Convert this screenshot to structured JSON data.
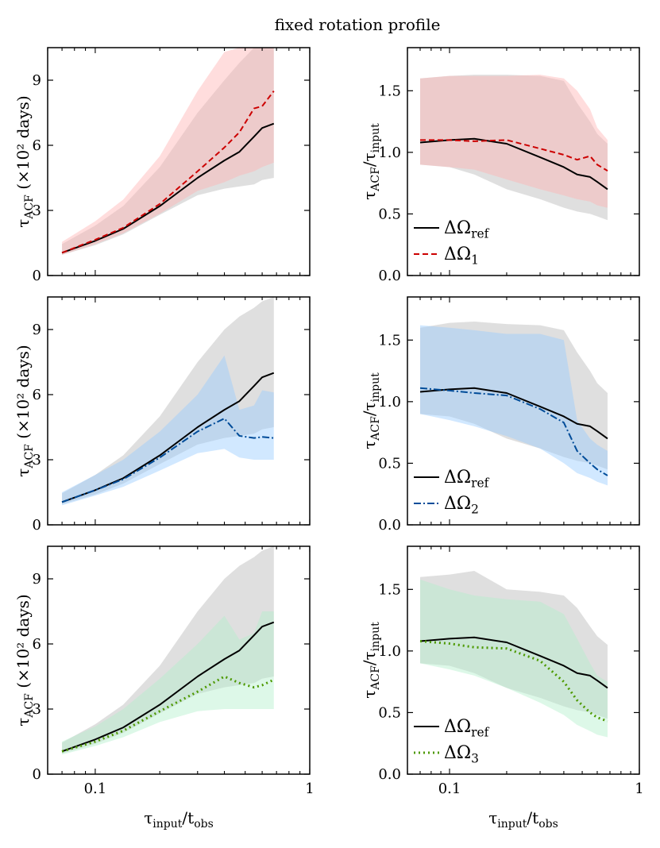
{
  "title": "fixed rotation profile",
  "shared_x_label": "τ_input/t_obs",
  "left_y_label": "τ_ACF (×10² days)",
  "right_y_label": "τ_ACF/τ_input",
  "chart_data": [
    {
      "type": "line",
      "name": "row1-left",
      "xscale": "log",
      "xlim": [
        0.06,
        1.0
      ],
      "ylim": [
        0,
        10.5
      ],
      "yticks": [
        0,
        3,
        6,
        9
      ],
      "xticks": [
        0.1,
        1
      ],
      "ylabel": "τ_ACF (×10² days)",
      "xlabel": "",
      "x": [
        0.07,
        0.1,
        0.135,
        0.2,
        0.3,
        0.4,
        0.47,
        0.55,
        0.6,
        0.68
      ],
      "series": [
        {
          "name": "ΔΩ_ref",
          "color": "#000000",
          "dash": "",
          "width": 2,
          "values": [
            1.05,
            1.6,
            2.15,
            3.2,
            4.5,
            5.3,
            5.7,
            6.4,
            6.8,
            7.0
          ],
          "band_lower": [
            0.95,
            1.4,
            1.9,
            2.8,
            3.7,
            4.0,
            4.1,
            4.2,
            4.4,
            4.5
          ],
          "band_upper": [
            1.45,
            2.3,
            3.2,
            5.0,
            7.5,
            9.0,
            9.8,
            10.5,
            10.5,
            10.5
          ],
          "band_color": "#b8b8b8"
        },
        {
          "name": "ΔΩ_1",
          "color": "#cc0000",
          "dash": "7,4",
          "width": 2,
          "values": [
            1.05,
            1.65,
            2.2,
            3.3,
            4.8,
            5.9,
            6.6,
            7.7,
            7.8,
            8.5
          ],
          "band_lower": [
            0.95,
            1.45,
            1.95,
            2.85,
            3.9,
            4.3,
            4.6,
            4.8,
            5.0,
            5.2
          ],
          "band_upper": [
            1.55,
            2.5,
            3.5,
            5.5,
            8.5,
            10.3,
            10.5,
            10.5,
            10.5,
            10.5
          ],
          "band_color": "#ffb3b3"
        }
      ],
      "legend": null
    },
    {
      "type": "line",
      "name": "row1-right",
      "xscale": "log",
      "xlim": [
        0.06,
        1.0
      ],
      "ylim": [
        0,
        1.85
      ],
      "yticks": [
        0.0,
        0.5,
        1.0,
        1.5
      ],
      "xticks": [
        0.1,
        1
      ],
      "ylabel": "τ_ACF/τ_input",
      "xlabel": "",
      "x": [
        0.07,
        0.1,
        0.135,
        0.2,
        0.3,
        0.4,
        0.47,
        0.55,
        0.6,
        0.68
      ],
      "series": [
        {
          "name": "ΔΩ_ref",
          "color": "#000000",
          "dash": "",
          "width": 2,
          "values": [
            1.08,
            1.1,
            1.11,
            1.07,
            0.96,
            0.88,
            0.82,
            0.8,
            0.76,
            0.7
          ],
          "band_lower": [
            0.9,
            0.88,
            0.82,
            0.7,
            0.62,
            0.55,
            0.52,
            0.5,
            0.48,
            0.45
          ],
          "band_upper": [
            1.6,
            1.62,
            1.63,
            1.63,
            1.62,
            1.58,
            1.4,
            1.25,
            1.15,
            1.07
          ],
          "band_color": "#b8b8b8"
        },
        {
          "name": "ΔΩ_1",
          "color": "#cc0000",
          "dash": "7,4",
          "width": 2,
          "values": [
            1.1,
            1.1,
            1.09,
            1.1,
            1.03,
            0.98,
            0.94,
            0.97,
            0.9,
            0.85
          ],
          "band_lower": [
            0.9,
            0.88,
            0.86,
            0.78,
            0.7,
            0.65,
            0.62,
            0.6,
            0.57,
            0.55
          ],
          "band_upper": [
            1.6,
            1.62,
            1.62,
            1.62,
            1.63,
            1.6,
            1.5,
            1.35,
            1.2,
            1.1
          ],
          "band_color": "#ffb3b3"
        }
      ],
      "legend": {
        "placement": "lower-left",
        "entries": [
          "ΔΩ_ref",
          "ΔΩ_1"
        ]
      }
    },
    {
      "type": "line",
      "name": "row2-left",
      "xscale": "log",
      "xlim": [
        0.06,
        1.0
      ],
      "ylim": [
        0,
        10.5
      ],
      "yticks": [
        0,
        3,
        6,
        9
      ],
      "xticks": [
        0.1,
        1
      ],
      "ylabel": "τ_ACF (×10² days)",
      "xlabel": "",
      "x": [
        0.07,
        0.1,
        0.135,
        0.2,
        0.3,
        0.4,
        0.47,
        0.55,
        0.6,
        0.68
      ],
      "series": [
        {
          "name": "ΔΩ_ref",
          "color": "#000000",
          "dash": "",
          "width": 2,
          "values": [
            1.05,
            1.6,
            2.15,
            3.2,
            4.5,
            5.3,
            5.7,
            6.4,
            6.8,
            7.0
          ],
          "band_lower": [
            0.95,
            1.4,
            1.9,
            2.8,
            3.7,
            4.0,
            4.1,
            4.2,
            4.4,
            4.5
          ],
          "band_upper": [
            1.45,
            2.3,
            3.2,
            5.0,
            7.5,
            9.0,
            9.6,
            10.0,
            10.3,
            10.5
          ],
          "band_color": "#b8b8b8"
        },
        {
          "name": "ΔΩ_2",
          "color": "#004c99",
          "dash": "9,3,2,3",
          "width": 2,
          "values": [
            1.05,
            1.6,
            2.1,
            3.1,
            4.3,
            4.9,
            4.1,
            4.0,
            4.05,
            4.0
          ],
          "band_lower": [
            0.9,
            1.35,
            1.75,
            2.5,
            3.3,
            3.5,
            3.1,
            3.0,
            3.0,
            3.0
          ],
          "band_upper": [
            1.5,
            2.3,
            3.0,
            4.3,
            6.0,
            7.8,
            5.3,
            5.5,
            6.2,
            6.1
          ],
          "band_color": "#99ccff"
        }
      ],
      "legend": null
    },
    {
      "type": "line",
      "name": "row2-right",
      "xscale": "log",
      "xlim": [
        0.06,
        1.0
      ],
      "ylim": [
        0,
        1.85
      ],
      "yticks": [
        0.0,
        0.5,
        1.0,
        1.5
      ],
      "xticks": [
        0.1,
        1
      ],
      "ylabel": "τ_ACF/τ_input",
      "xlabel": "",
      "x": [
        0.07,
        0.1,
        0.135,
        0.2,
        0.3,
        0.4,
        0.47,
        0.55,
        0.6,
        0.68
      ],
      "series": [
        {
          "name": "ΔΩ_ref",
          "color": "#000000",
          "dash": "",
          "width": 2,
          "values": [
            1.08,
            1.1,
            1.11,
            1.07,
            0.96,
            0.88,
            0.82,
            0.8,
            0.76,
            0.7
          ],
          "band_lower": [
            0.9,
            0.88,
            0.82,
            0.7,
            0.62,
            0.55,
            0.52,
            0.5,
            0.48,
            0.45
          ],
          "band_upper": [
            1.6,
            1.64,
            1.65,
            1.63,
            1.62,
            1.58,
            1.4,
            1.25,
            1.15,
            1.07
          ],
          "band_color": "#b8b8b8"
        },
        {
          "name": "ΔΩ_2",
          "color": "#004c99",
          "dash": "9,3,2,3",
          "width": 2,
          "values": [
            1.11,
            1.09,
            1.07,
            1.05,
            0.94,
            0.83,
            0.6,
            0.5,
            0.45,
            0.4
          ],
          "band_lower": [
            0.9,
            0.85,
            0.8,
            0.72,
            0.62,
            0.5,
            0.42,
            0.38,
            0.35,
            0.32
          ],
          "band_upper": [
            1.62,
            1.6,
            1.58,
            1.55,
            1.55,
            1.5,
            0.85,
            0.7,
            0.65,
            0.6
          ],
          "band_color": "#99ccff"
        }
      ],
      "legend": {
        "placement": "lower-left",
        "entries": [
          "ΔΩ_ref",
          "ΔΩ_2"
        ]
      }
    },
    {
      "type": "line",
      "name": "row3-left",
      "xscale": "log",
      "xlim": [
        0.06,
        1.0
      ],
      "ylim": [
        0,
        10.5
      ],
      "yticks": [
        0,
        3,
        6,
        9
      ],
      "xticks": [
        0.1,
        1
      ],
      "ylabel": "τ_ACF (×10² days)",
      "xlabel": "τ_input/t_obs",
      "x": [
        0.07,
        0.1,
        0.135,
        0.2,
        0.3,
        0.4,
        0.47,
        0.55,
        0.6,
        0.68
      ],
      "series": [
        {
          "name": "ΔΩ_ref",
          "color": "#000000",
          "dash": "",
          "width": 2,
          "values": [
            1.05,
            1.6,
            2.15,
            3.2,
            4.5,
            5.3,
            5.7,
            6.4,
            6.8,
            7.0
          ],
          "band_lower": [
            0.95,
            1.4,
            1.9,
            2.8,
            3.7,
            4.0,
            4.1,
            4.2,
            4.4,
            4.5
          ],
          "band_upper": [
            1.45,
            2.3,
            3.2,
            5.0,
            7.5,
            9.0,
            9.6,
            10.0,
            10.3,
            10.5
          ],
          "band_color": "#b8b8b8"
        },
        {
          "name": "ΔΩ_3",
          "color": "#4d9900",
          "dash": "2,4",
          "width": 3,
          "values": [
            1.05,
            1.5,
            2.0,
            2.9,
            3.8,
            4.5,
            4.2,
            4.0,
            4.1,
            4.35
          ],
          "band_lower": [
            0.9,
            1.3,
            1.7,
            2.4,
            2.9,
            3.0,
            3.0,
            3.0,
            3.0,
            3.0
          ],
          "band_upper": [
            1.5,
            2.2,
            3.0,
            4.4,
            6.0,
            7.3,
            6.2,
            6.5,
            7.5,
            7.5
          ],
          "band_color": "#b3f0cc"
        }
      ],
      "legend": null
    },
    {
      "type": "line",
      "name": "row3-right",
      "xscale": "log",
      "xlim": [
        0.06,
        1.0
      ],
      "ylim": [
        0,
        1.85
      ],
      "yticks": [
        0.0,
        0.5,
        1.0,
        1.5
      ],
      "xticks": [
        0.1,
        1
      ],
      "ylabel": "τ_ACF/τ_input",
      "xlabel": "τ_input/t_obs",
      "x": [
        0.07,
        0.1,
        0.135,
        0.2,
        0.3,
        0.4,
        0.47,
        0.55,
        0.6,
        0.68
      ],
      "series": [
        {
          "name": "ΔΩ_ref",
          "color": "#000000",
          "dash": "",
          "width": 2,
          "values": [
            1.08,
            1.1,
            1.11,
            1.07,
            0.96,
            0.88,
            0.82,
            0.8,
            0.76,
            0.7
          ],
          "band_lower": [
            0.9,
            0.88,
            0.82,
            0.7,
            0.62,
            0.55,
            0.52,
            0.5,
            0.48,
            0.45
          ],
          "band_upper": [
            1.6,
            1.62,
            1.65,
            1.5,
            1.48,
            1.45,
            1.35,
            1.2,
            1.12,
            1.05
          ],
          "band_color": "#b8b8b8"
        },
        {
          "name": "ΔΩ_3",
          "color": "#4d9900",
          "dash": "2,4",
          "width": 3,
          "values": [
            1.08,
            1.06,
            1.03,
            1.02,
            0.92,
            0.75,
            0.6,
            0.5,
            0.46,
            0.43
          ],
          "band_lower": [
            0.9,
            0.85,
            0.8,
            0.7,
            0.58,
            0.48,
            0.4,
            0.35,
            0.32,
            0.3
          ],
          "band_upper": [
            1.58,
            1.5,
            1.45,
            1.42,
            1.4,
            1.3,
            1.1,
            0.9,
            0.8,
            0.75
          ],
          "band_color": "#b3f0cc"
        }
      ],
      "legend": {
        "placement": "lower-left",
        "entries": [
          "ΔΩ_ref",
          "ΔΩ_3"
        ]
      }
    }
  ]
}
